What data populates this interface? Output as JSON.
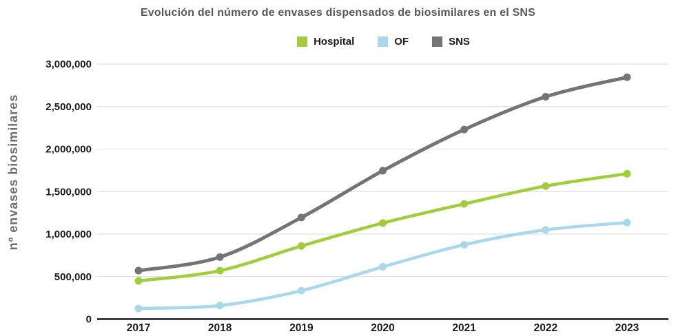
{
  "chart_data": {
    "type": "line",
    "title": "Evolución del número de envases dispensados de biosimilares en el SNS",
    "categories": [
      "2017",
      "2018",
      "2019",
      "2020",
      "2021",
      "2022",
      "2023"
    ],
    "series": [
      {
        "name": "Hospital",
        "color": "#a2cd3a",
        "values": [
          450000,
          570000,
          860000,
          1130000,
          1355000,
          1565000,
          1710000
        ]
      },
      {
        "name": "OF",
        "color": "#a9d7ec",
        "values": [
          125000,
          160000,
          335000,
          615000,
          875000,
          1050000,
          1135000
        ]
      },
      {
        "name": "SNS",
        "color": "#747477",
        "values": [
          570000,
          730000,
          1195000,
          1745000,
          2230000,
          2615000,
          2845000
        ]
      }
    ],
    "xlabel": "",
    "ylabel": "nº envases biosimilares",
    "ylim": [
      0,
      3000000
    ],
    "ytick_step": 500000,
    "ytick_labels": [
      "3,000,000",
      "2,500,000",
      "2,000,000",
      "1,500,000",
      "1,000,000",
      "500,000",
      "0"
    ],
    "grid": true,
    "legend_position": "top",
    "colors": {
      "grid": "#d9d9d9",
      "axis": "#3f3f42",
      "tick_text": "#1a1a1a",
      "title_text": "#58585a",
      "ylabel_text": "#6e6f72"
    }
  }
}
